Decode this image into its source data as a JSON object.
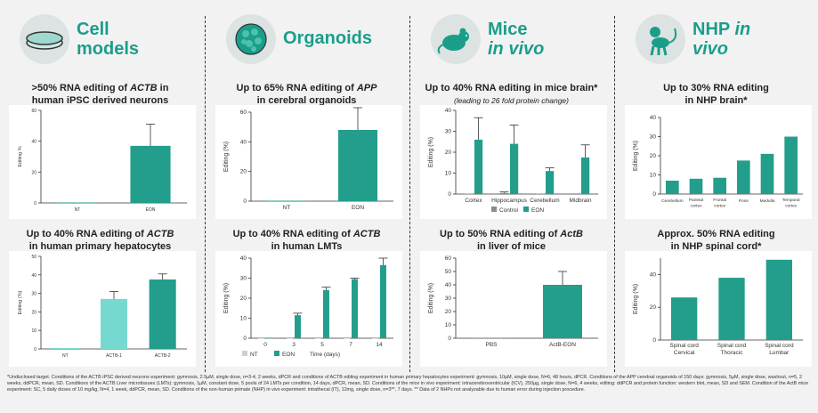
{
  "colors": {
    "accent": "#1a9e8a",
    "bar_dark": "#239e8c",
    "bar_light": "#76d9cf",
    "control": "#8c8c8c"
  },
  "columns": [
    {
      "title_line1": "Cell",
      "title_line2": "models",
      "icon": "petri-dish-icon"
    },
    {
      "title_line1": "Organoids",
      "title_line2": "",
      "icon": "organoid-icon"
    },
    {
      "title_line1": "Mice",
      "title_line2": "in vivo",
      "icon": "mouse-icon"
    },
    {
      "title_line1": "NHP",
      "title_line1_suffix": "in",
      "title_line2": "vivo",
      "icon": "monkey-icon"
    }
  ],
  "titles": {
    "c1": {
      "pre": ">50% RNA editing of ",
      "em": "ACTB",
      "post": " in",
      "line2": "human iPSC derived neurons"
    },
    "c2": {
      "pre": "Up to 40% RNA editing of ",
      "em": "ACTB",
      "post": "",
      "line2": "in human primary hepatocytes"
    },
    "c3": {
      "pre": "Up to 65% RNA editing of ",
      "em": "APP",
      "post": "",
      "line2": "in cerebral organoids"
    },
    "c4": {
      "pre": "Up to 40% RNA editing of ",
      "em": "ACTB",
      "post": "",
      "line2": "in human LMTs"
    },
    "c5": {
      "pre": "Up to 40% RNA editing in mice brain*",
      "em": "",
      "post": "",
      "line2": "",
      "sub": "(leading to 26 fold protein change)"
    },
    "c6": {
      "pre": "Up to 50% RNA editing of ",
      "em": "ActB",
      "post": "",
      "line2": "in liver of mice"
    },
    "c7": {
      "pre": "Up to 30% RNA editing",
      "em": "",
      "post": "",
      "line2": "in NHP brain*"
    },
    "c8": {
      "pre": "Approx. 50% RNA editing",
      "em": "",
      "post": "",
      "line2": "in NHP spinal cord*"
    }
  },
  "chart_data": [
    {
      "id": "c1",
      "type": "bar",
      "categories": [
        "NT",
        "EON"
      ],
      "values": [
        0,
        37
      ],
      "errors": [
        0,
        14
      ],
      "ylabel": "Editing %",
      "ylim": [
        0,
        60
      ],
      "yticks": [
        0,
        20,
        40,
        60
      ],
      "colors": [
        "#239e8c",
        "#239e8c"
      ]
    },
    {
      "id": "c2",
      "type": "bar",
      "categories": [
        "NT",
        "ACTB-1",
        "ACTB-2"
      ],
      "values": [
        0.5,
        27,
        37.5
      ],
      "errors": [
        0,
        4,
        3
      ],
      "ylabel": "Editing (%)",
      "ylim": [
        0,
        50
      ],
      "yticks": [
        0,
        10,
        20,
        30,
        40,
        50
      ],
      "colors": [
        "#76d9cf",
        "#76d9cf",
        "#239e8c"
      ]
    },
    {
      "id": "c3",
      "type": "bar",
      "categories": [
        "NT",
        "EON"
      ],
      "values": [
        0,
        48
      ],
      "errors": [
        0,
        15
      ],
      "ylabel": "Editing (%)",
      "ylim": [
        0,
        60
      ],
      "yticks": [
        0,
        20,
        40,
        60
      ],
      "colors": [
        "#239e8c",
        "#239e8c"
      ]
    },
    {
      "id": "c4",
      "type": "bar",
      "categories": [
        "0",
        "3",
        "5",
        "7",
        "14"
      ],
      "xlabel": "Time (days)",
      "series": [
        {
          "name": "NT",
          "values": [
            0,
            0,
            0,
            0,
            0
          ]
        },
        {
          "name": "EON",
          "values": [
            0,
            11.5,
            24,
            29.5,
            36.5
          ]
        }
      ],
      "errors": [
        0,
        1,
        1.5,
        0.5,
        3.5
      ],
      "ylabel": "Editing (%)",
      "ylim": [
        0,
        40
      ],
      "yticks": [
        0,
        10,
        20,
        30,
        40
      ]
    },
    {
      "id": "c5",
      "type": "bar",
      "categories": [
        "Cortex",
        "Hippocampus",
        "Cerebellum",
        "Midbrain"
      ],
      "series": [
        {
          "name": "Control",
          "values": [
            0.2,
            0.5,
            0.2,
            0.3
          ],
          "errors": [
            0,
            0.5,
            0,
            0
          ]
        },
        {
          "name": "EON",
          "values": [
            26,
            24,
            11,
            17.5
          ],
          "errors": [
            10.5,
            9,
            1.5,
            6
          ]
        }
      ],
      "ylabel": "Editing (%)",
      "ylim": [
        0,
        40
      ],
      "yticks": [
        0,
        10,
        20,
        30,
        40
      ]
    },
    {
      "id": "c6",
      "type": "bar",
      "categories": [
        "PBS",
        "ActB-EON"
      ],
      "values": [
        0,
        40
      ],
      "errors": [
        0,
        10
      ],
      "ylabel": "Editing (%)",
      "ylim": [
        0,
        60
      ],
      "yticks": [
        0,
        10,
        20,
        30,
        40,
        50,
        60
      ],
      "colors": [
        "#239e8c",
        "#239e8c"
      ]
    },
    {
      "id": "c7",
      "type": "bar",
      "categories": [
        "Cerebellum",
        "Parietal cortex",
        "Frontal cortex",
        "Pons",
        "Medulla",
        "Temporal cortex"
      ],
      "values": [
        7,
        8,
        8.5,
        17.5,
        21,
        30
      ],
      "ylabel": "Editing (%)",
      "ylim": [
        0,
        40
      ],
      "yticks": [
        0,
        10,
        20,
        30,
        40
      ],
      "colors": [
        "#239e8c",
        "#239e8c",
        "#239e8c",
        "#239e8c",
        "#239e8c",
        "#239e8c"
      ]
    },
    {
      "id": "c8",
      "type": "bar",
      "categories": [
        "Spinal cord Cervical",
        "Spinal cord Thoracic",
        "Spinal cord Lumbar"
      ],
      "values": [
        26,
        38,
        49
      ],
      "ylabel": "Editing (%)",
      "ylim": [
        0,
        50
      ],
      "yticks": [
        0,
        20,
        40
      ],
      "colors": [
        "#239e8c",
        "#239e8c",
        "#239e8c"
      ]
    }
  ],
  "footnote": "*Undisclosed target. Conditions of the ACTB iPSC derived neurons experiment: gymnosis, 2.5µM, single dose, n=3-4, 2 weeks, dPCR and conditions of ACTB editing experiment in human primary hepatocytes experiment: gymnosis, 10µM, single dose, N=6, 48 hours, dPCR. Conditions of the APP cerebral organoids of 150 days: gymnosis, 5µM, single dose, washout, n=5, 2 weeks, ddPCR, mean, SD. Conditions of the ACTB Liver microtissues (LMTs): gymnosis, 1µM, constant dose, 5 pools of 24 LMTs per condition, 14 days, dPCR, mean, SD. Conditions of the mice in vivo experiment: intracerebroventricular (ICV), 250µg, single dose, N=6, 4 weeks, editing: ddPCR and protein function: western blot, mean, SD and SEM. Condition of the ActB mice experiment: SC, 5 daily doses of 10 mg/kg, N=4, 1 week, ddPCR, mean, SD. Conditions of the non-human primate (NHP) in vivo experiment: intrathecal (IT), 12mg, single dose, n=3**, 7 days. ** Data of 2 NHPs not analyzable due to human error during injection procedure."
}
